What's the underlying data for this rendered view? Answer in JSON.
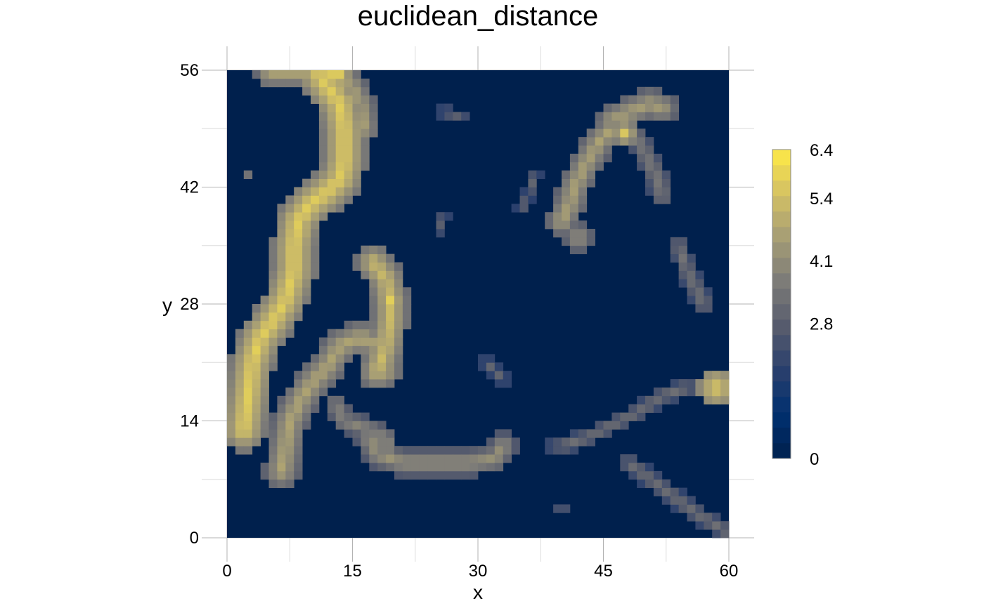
{
  "chart_data": {
    "type": "heatmap",
    "title": "euclidean_distance",
    "xlabel": "x",
    "ylabel": "y",
    "xlim": [
      0,
      60
    ],
    "ylim": [
      0,
      56
    ],
    "x_ticks": [
      0,
      15,
      30,
      45,
      60
    ],
    "y_ticks": [
      0,
      14,
      28,
      42,
      56
    ],
    "legend_ticks": [
      6.4,
      5.4,
      4.1,
      2.8,
      0
    ],
    "legend_placement": "right",
    "grid": true,
    "value_range": [
      0,
      6.4
    ],
    "colorscale": [
      "#00204d",
      "#00306f",
      "#2a3f6d",
      "#575c6d",
      "#7c7b78",
      "#a69d75",
      "#d3c164",
      "#ffea46"
    ],
    "cell_size": 1,
    "description_of_values": "value per 1x1 cell, x from 0 to 60, y from 0 to 56; background cells are 0",
    "hotspots": [
      {
        "x": 13,
        "y": 55.5,
        "peak": 6.3
      },
      {
        "x": 8.5,
        "y": 37,
        "peak": 6.2
      },
      {
        "x": 19.5,
        "y": 28,
        "peak": 5.8
      },
      {
        "x": 47.5,
        "y": 48.5,
        "peak": 5.6
      },
      {
        "x": 58.5,
        "y": 18,
        "peak": 5.7
      }
    ]
  }
}
